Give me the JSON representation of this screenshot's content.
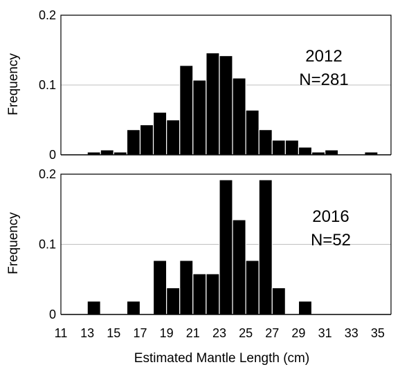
{
  "chart_data": [
    {
      "type": "bar",
      "panel": "top",
      "annotation": [
        "2012",
        "N=281"
      ],
      "ylabel": "Frequency",
      "ylim": [
        0,
        0.2
      ],
      "yticks": [
        {
          "value": 0,
          "label": "0"
        },
        {
          "value": 0.1,
          "label": "0.1"
        },
        {
          "value": 0.2,
          "label": "0.2"
        }
      ],
      "grid": "horizontal",
      "xlim": [
        11,
        36
      ],
      "bin_start": [
        13,
        14,
        15,
        16,
        17,
        18,
        19,
        20,
        21,
        22,
        23,
        24,
        25,
        26,
        27,
        28,
        29,
        30,
        31,
        32,
        33,
        34
      ],
      "values": [
        0.004,
        0.007,
        0.004,
        0.036,
        0.043,
        0.061,
        0.05,
        0.128,
        0.107,
        0.146,
        0.142,
        0.11,
        0.064,
        0.036,
        0.021,
        0.021,
        0.011,
        0.004,
        0.007,
        0.0,
        0.0,
        0.004
      ]
    },
    {
      "type": "bar",
      "panel": "bottom",
      "annotation": [
        "2016",
        "N=52"
      ],
      "ylabel": "Frequency",
      "ylim": [
        0,
        0.2
      ],
      "yticks": [
        {
          "value": 0,
          "label": "0"
        },
        {
          "value": 0.1,
          "label": "0.1"
        },
        {
          "value": 0.2,
          "label": "0.2"
        }
      ],
      "grid": "horizontal",
      "xlim": [
        11,
        36
      ],
      "xlabel": "Estimated Mantle Length (cm)",
      "xticks": [
        "11",
        "13",
        "15",
        "17",
        "19",
        "21",
        "23",
        "25",
        "27",
        "29",
        "31",
        "33",
        "35"
      ],
      "bin_start": [
        13,
        14,
        15,
        16,
        17,
        18,
        19,
        20,
        21,
        22,
        23,
        24,
        25,
        26,
        27,
        28,
        29,
        30,
        31,
        32,
        33,
        34
      ],
      "values": [
        0.019,
        0.0,
        0.0,
        0.019,
        0.0,
        0.077,
        0.038,
        0.077,
        0.058,
        0.058,
        0.192,
        0.135,
        0.077,
        0.192,
        0.038,
        0.0,
        0.019,
        0.0,
        0.0,
        0.0,
        0.0,
        0.0
      ]
    }
  ]
}
